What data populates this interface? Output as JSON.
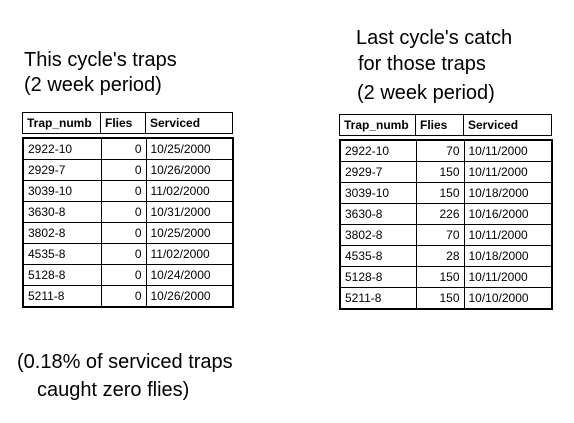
{
  "left": {
    "heading": [
      "This cycle's traps",
      "(2 week period)"
    ],
    "table": {
      "columns": [
        "Trap_numb",
        "Flies",
        "Serviced"
      ],
      "rows": [
        [
          "2922-10",
          0,
          "10/25/2000"
        ],
        [
          "2929-7",
          0,
          "10/26/2000"
        ],
        [
          "3039-10",
          0,
          "11/02/2000"
        ],
        [
          "3630-8",
          0,
          "10/31/2000"
        ],
        [
          "3802-8",
          0,
          "10/25/2000"
        ],
        [
          "4535-8",
          0,
          "11/02/2000"
        ],
        [
          "5128-8",
          0,
          "10/24/2000"
        ],
        [
          "5211-8",
          0,
          "10/26/2000"
        ]
      ]
    }
  },
  "right": {
    "heading": [
      "Last cycle's catch",
      "for those traps",
      "(2 week period)"
    ],
    "table": {
      "columns": [
        "Trap_numb",
        "Flies",
        "Serviced"
      ],
      "rows": [
        [
          "2922-10",
          70,
          "10/11/2000"
        ],
        [
          "2929-7",
          150,
          "10/11/2000"
        ],
        [
          "3039-10",
          150,
          "10/18/2000"
        ],
        [
          "3630-8",
          226,
          "10/16/2000"
        ],
        [
          "3802-8",
          70,
          "10/11/2000"
        ],
        [
          "4535-8",
          28,
          "10/18/2000"
        ],
        [
          "5128-8",
          150,
          "10/11/2000"
        ],
        [
          "5211-8",
          150,
          "10/10/2000"
        ]
      ]
    }
  },
  "note": [
    "(0.18% of serviced traps",
    "caught zero flies)"
  ]
}
